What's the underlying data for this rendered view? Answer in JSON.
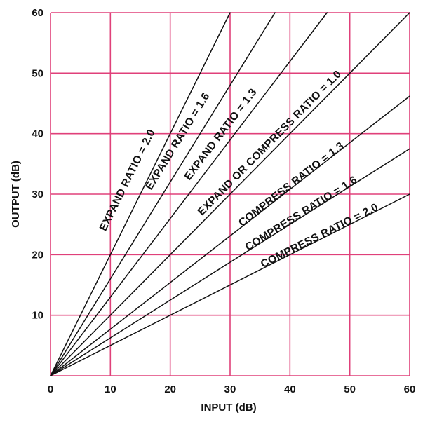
{
  "chart_data": {
    "type": "line",
    "title": "",
    "xlabel": "INPUT (dB)",
    "ylabel": "OUTPUT (dB)",
    "xlim": [
      0,
      60
    ],
    "ylim": [
      0,
      60
    ],
    "x_ticks": [
      "0",
      "10",
      "20",
      "30",
      "40",
      "50",
      "60"
    ],
    "y_ticks": [
      "10",
      "20",
      "30",
      "40",
      "50",
      "60"
    ],
    "grid": true,
    "colors": {
      "grid": "#e0407a",
      "line": "#111111",
      "text": "#111111",
      "background": "#ffffff"
    },
    "series": [
      {
        "name": "EXPAND RATIO = 2.0",
        "slope": 2.0,
        "x": [
          0,
          30
        ],
        "y": [
          0,
          60
        ]
      },
      {
        "name": "EXPAND RATIO = 1.6",
        "slope": 1.6,
        "x": [
          0,
          37.5
        ],
        "y": [
          0,
          60
        ]
      },
      {
        "name": "EXPAND RATIO = 1.3",
        "slope": 1.3,
        "x": [
          0,
          46.2
        ],
        "y": [
          0,
          60
        ]
      },
      {
        "name": "EXPAND OR COMPRESS RATIO = 1.0",
        "slope": 1.0,
        "x": [
          0,
          60
        ],
        "y": [
          0,
          60
        ]
      },
      {
        "name": "COMPRESS RATIO = 1.3",
        "slope": 0.769,
        "x": [
          0,
          60
        ],
        "y": [
          0,
          46.2
        ]
      },
      {
        "name": "COMPRESS RATIO = 1.6",
        "slope": 0.625,
        "x": [
          0,
          60
        ],
        "y": [
          0,
          37.5
        ]
      },
      {
        "name": "COMPRESS RATIO = 2.0",
        "slope": 0.5,
        "x": [
          0,
          60
        ],
        "y": [
          0,
          30
        ]
      }
    ],
    "label_anchors_data": [
      {
        "x": 9.2,
        "y": 23.8
      },
      {
        "x": 16.8,
        "y": 30.6
      },
      {
        "x": 23.2,
        "y": 32.2
      },
      {
        "x": 25.3,
        "y": 26.4
      },
      {
        "x": 32.0,
        "y": 24.6
      },
      {
        "x": 33.0,
        "y": 20.6
      },
      {
        "x": 35.5,
        "y": 17.8
      }
    ]
  }
}
